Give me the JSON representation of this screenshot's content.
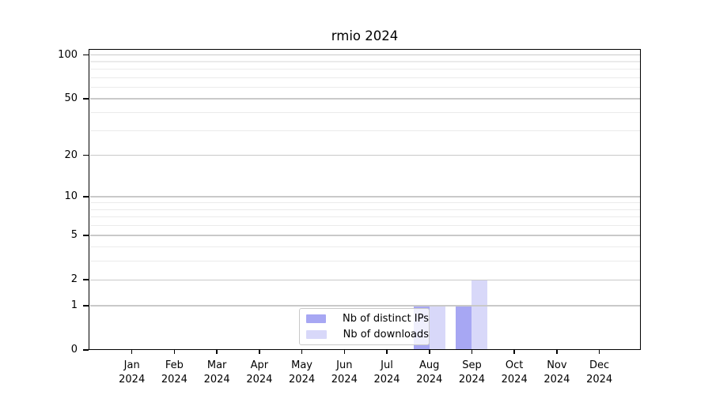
{
  "title": "rmio 2024",
  "legend": {
    "items": [
      {
        "label": "Nb of distinct IPs",
        "color": "#a7a7f3"
      },
      {
        "label": "Nb of downloads",
        "color": "#d8d8f9"
      }
    ]
  },
  "chart_data": {
    "type": "bar",
    "title": "rmio 2024",
    "categories": [
      "Jan",
      "Feb",
      "Mar",
      "Apr",
      "May",
      "Jun",
      "Jul",
      "Aug",
      "Sep",
      "Oct",
      "Nov",
      "Dec"
    ],
    "x_tick_line2": "2024",
    "series": [
      {
        "name": "Nb of distinct IPs",
        "color": "#a7a7f3",
        "values": [
          0,
          0,
          0,
          0,
          0,
          0,
          0,
          1,
          1,
          0,
          0,
          0
        ]
      },
      {
        "name": "Nb of downloads",
        "color": "#d8d8f9",
        "values": [
          0,
          0,
          0,
          0,
          0,
          0,
          0,
          1,
          2,
          0,
          0,
          0
        ]
      }
    ],
    "yscale": "log1p",
    "ylim": [
      0,
      110
    ],
    "y_major_ticks": [
      0,
      1,
      2,
      5,
      10,
      20,
      50,
      100
    ],
    "y_minor_gridlines": [
      3,
      4,
      6,
      7,
      8,
      9,
      30,
      40,
      60,
      70,
      80,
      90
    ],
    "grid": "horizontal",
    "legend_position": "lower-center"
  }
}
